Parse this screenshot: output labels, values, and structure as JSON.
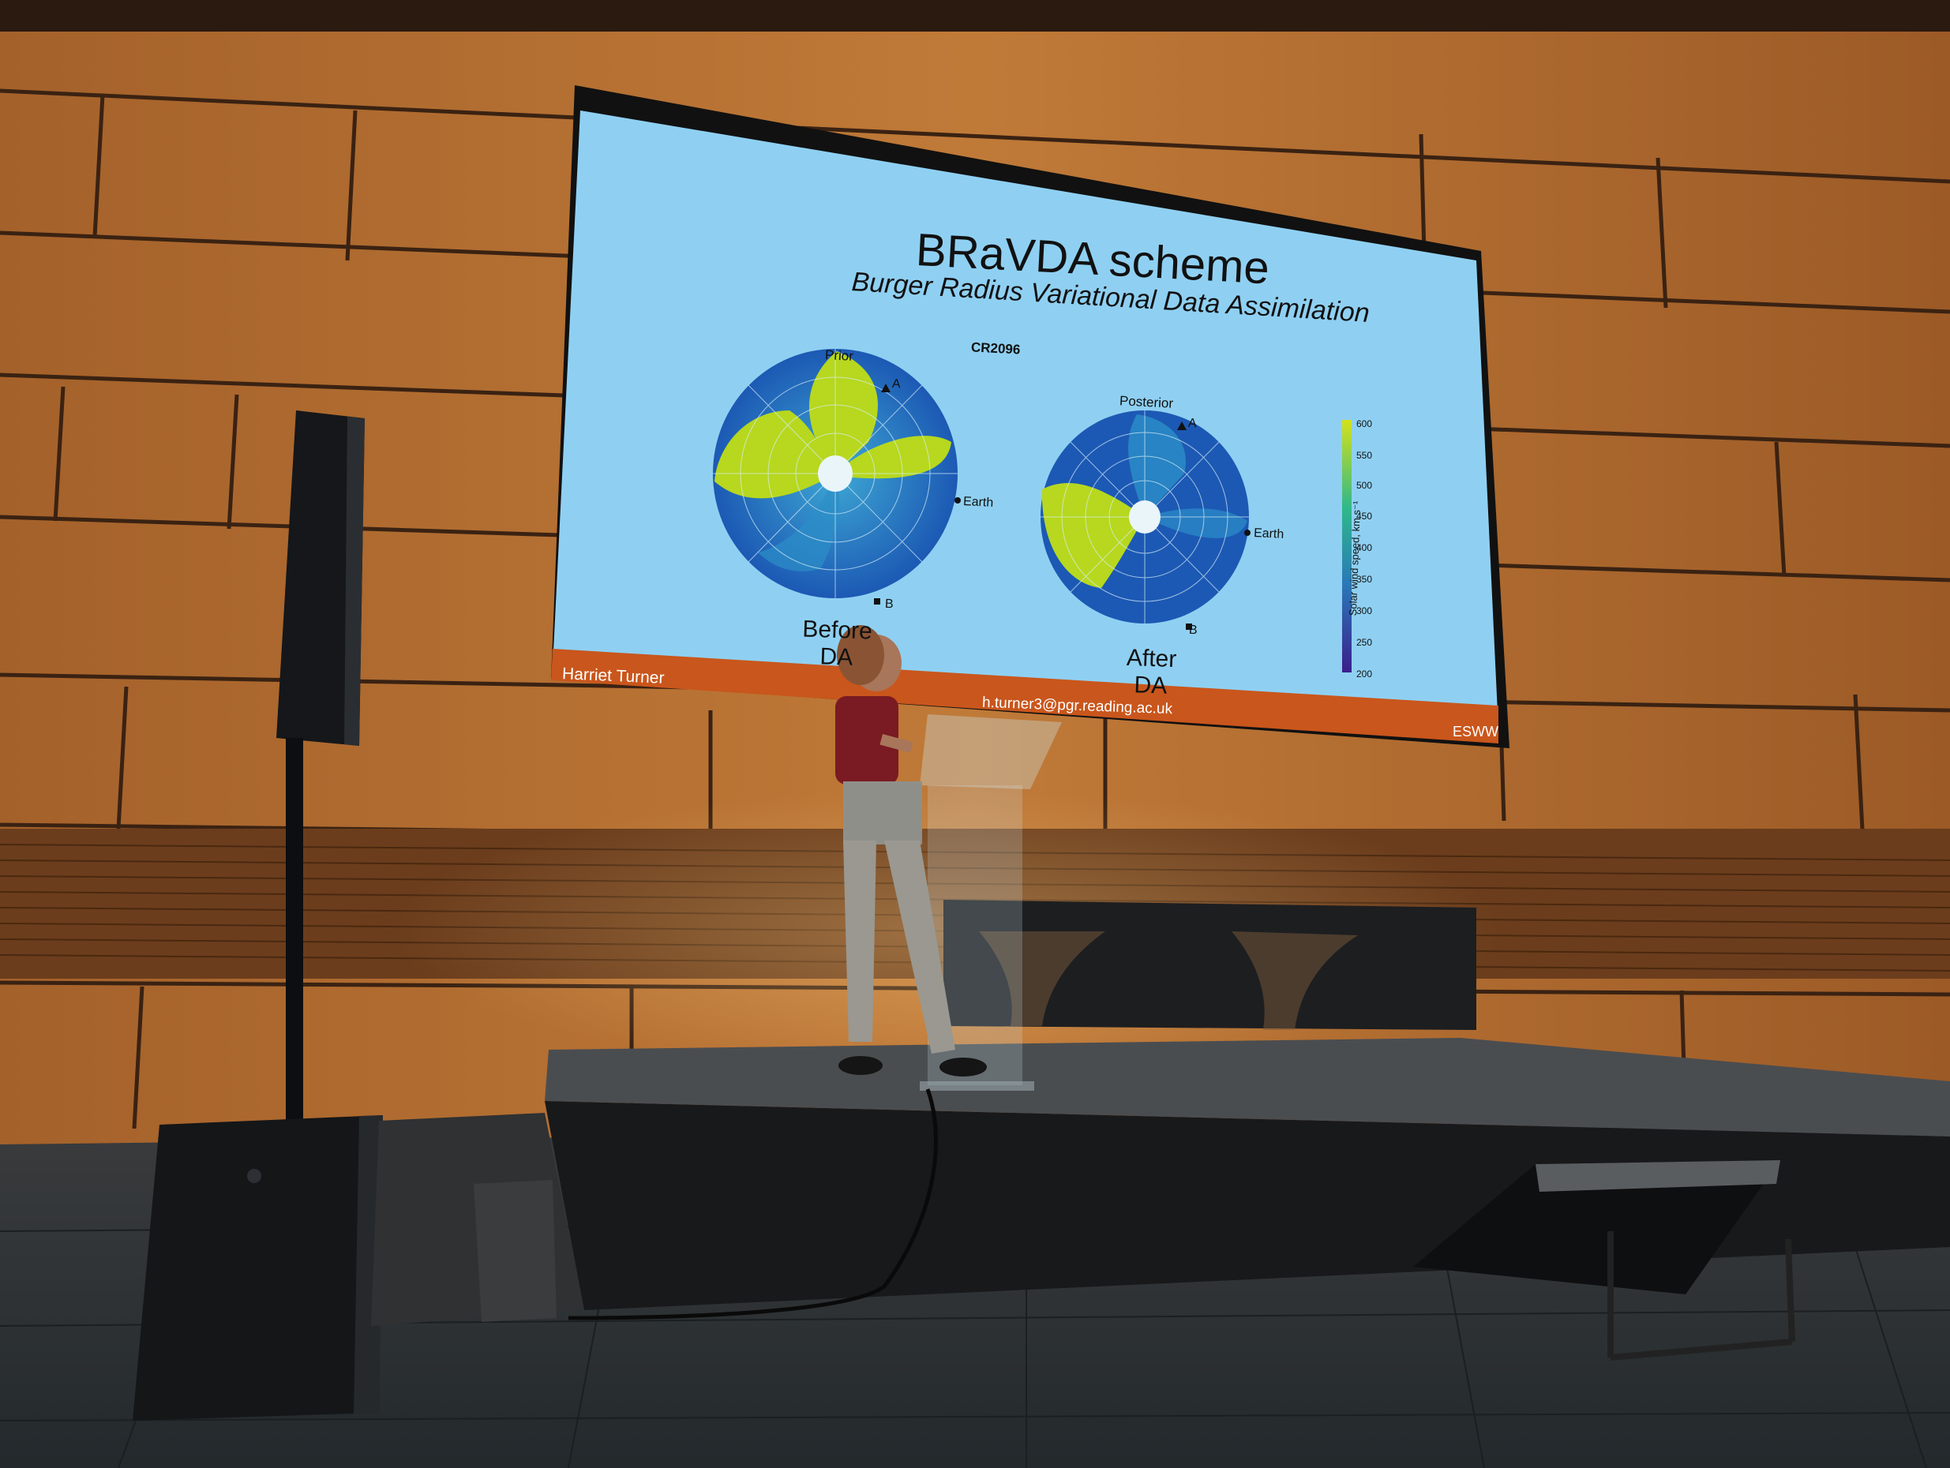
{
  "slide": {
    "title": "BRaVDA scheme",
    "subtitle": "Burger Radius Variational Data Assimilation",
    "carrington_rotation": "CR2096",
    "left_panel": {
      "heading": "Prior",
      "caption_line1": "Before",
      "caption_line2": "DA",
      "markers": {
        "a": "A",
        "b": "B",
        "earth": "Earth"
      }
    },
    "right_panel": {
      "heading": "Posterior",
      "caption_line1": "After",
      "caption_line2": "DA",
      "markers": {
        "a": "A",
        "b": "B",
        "earth": "Earth"
      }
    },
    "colorbar": {
      "title": "Solar wind speed, km s⁻¹",
      "ticks": [
        "600",
        "550",
        "500",
        "450",
        "400",
        "350",
        "300",
        "250",
        "200"
      ]
    },
    "footer": {
      "presenter": "Harriet Turner",
      "email": "h.turner3@pgr.reading.ac.uk",
      "event": "ESWW"
    }
  },
  "colors": {
    "slide_background": "#8fd0f2",
    "footer_bar": "#c9561c",
    "wind_fast": "#b7d81e",
    "wind_slow": "#1c59b4",
    "wall_wood": "#b06a2c"
  }
}
